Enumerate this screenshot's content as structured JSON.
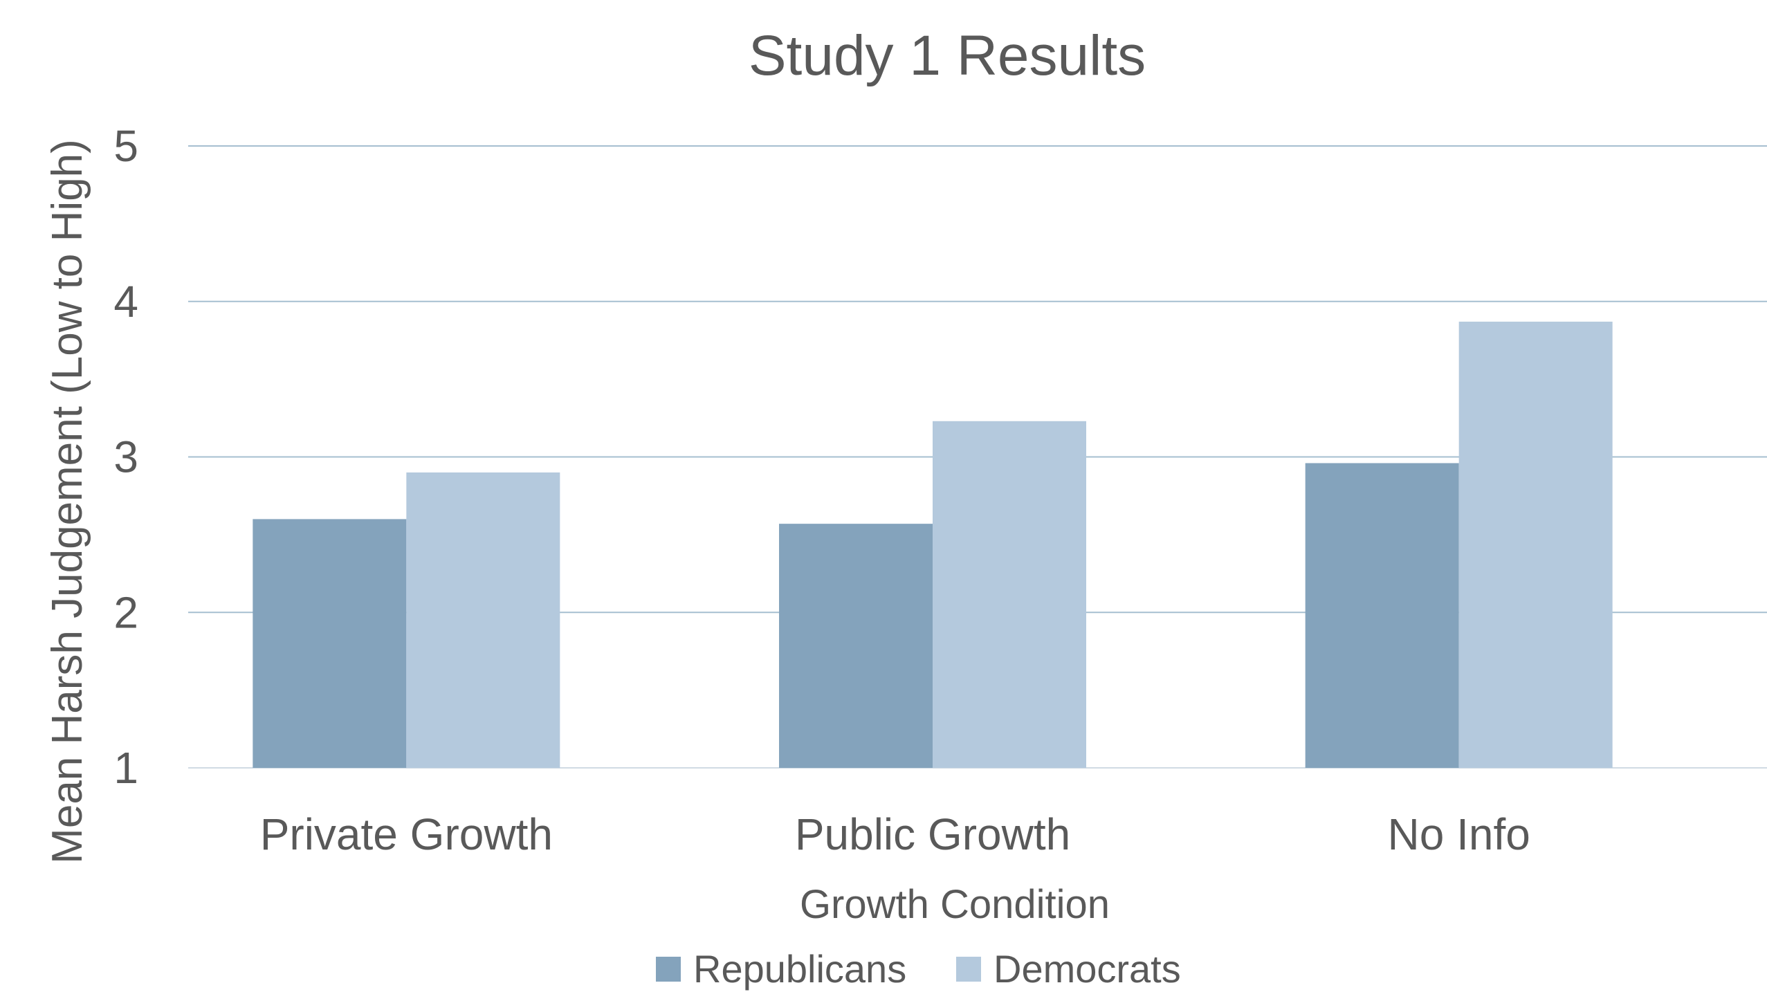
{
  "chart_data": {
    "type": "bar",
    "title": "Study 1 Results",
    "xlabel": "Growth Condition",
    "ylabel": "Mean Harsh Judgement (Low to High)",
    "categories": [
      "Private Growth",
      "Public Growth",
      "No Info"
    ],
    "series": [
      {
        "name": "Republicans",
        "values": [
          2.6,
          2.57,
          2.96
        ],
        "color": "#84a3bc"
      },
      {
        "name": "Democrats",
        "values": [
          2.9,
          3.23,
          3.87
        ],
        "color": "#b4c9dd"
      }
    ],
    "ylim": [
      1,
      5
    ],
    "yticks": [
      "1",
      "2",
      "3",
      "4",
      "5"
    ],
    "grid": true,
    "legend_position": "bottom"
  }
}
